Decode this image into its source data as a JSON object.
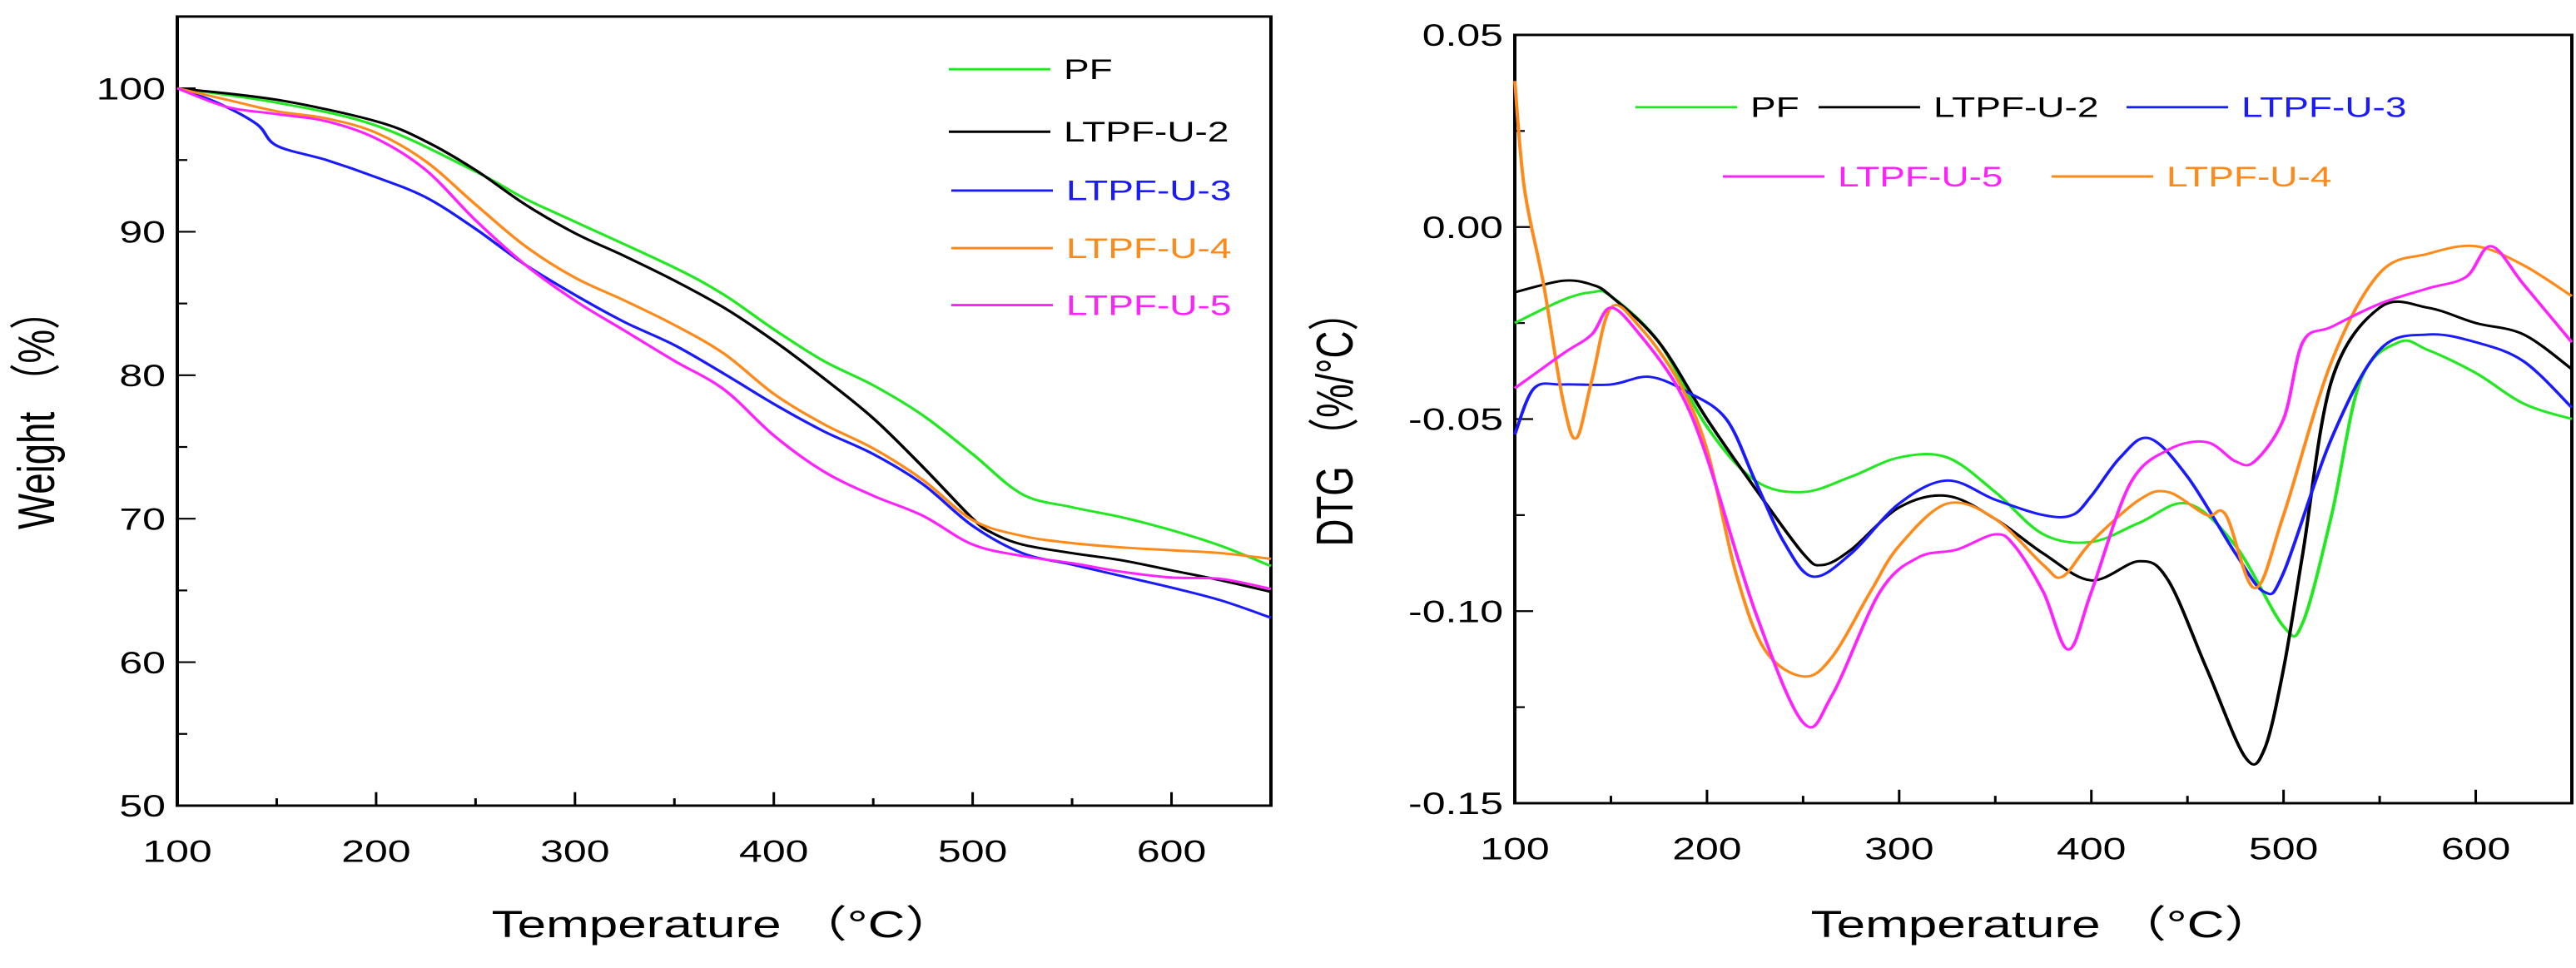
{
  "colors": {
    "PF": "#22e822",
    "LTPF-U-2": "#000000",
    "LTPF-U-3": "#1a1aff",
    "LTPF-U-4": "#ff8a1a",
    "LTPF-U-5": "#ff22ff"
  },
  "chart_data": [
    {
      "type": "line",
      "title": "",
      "xlabel": "Temperature （°C）",
      "ylabel": "Weight （%）",
      "xlim": [
        100,
        650
      ],
      "ylim": [
        50,
        105
      ],
      "xticks": [
        100,
        200,
        300,
        400,
        500,
        600
      ],
      "yticks": [
        50,
        60,
        70,
        80,
        90,
        100
      ],
      "xtick_labels": [
        "100",
        "200",
        "300",
        "400",
        "500",
        "600"
      ],
      "ytick_labels": [
        "50",
        "60",
        "70",
        "80",
        "90",
        "100"
      ],
      "grid": false,
      "legend_position": "top-right",
      "series": [
        {
          "name": "PF",
          "x": [
            100,
            150,
            200,
            250,
            275,
            300,
            350,
            375,
            400,
            425,
            450,
            475,
            500,
            525,
            550,
            575,
            600,
            625,
            650
          ],
          "y": [
            100,
            99.0,
            97.4,
            94.2,
            92.3,
            90.7,
            87.5,
            85.6,
            83.2,
            81.0,
            79.3,
            77.2,
            74.5,
            71.7,
            70.8,
            70.1,
            69.2,
            68.1,
            66.7
          ]
        },
        {
          "name": "LTPF-U-2",
          "x": [
            100,
            150,
            200,
            225,
            250,
            275,
            300,
            325,
            350,
            375,
            400,
            425,
            450,
            475,
            500,
            510,
            525,
            550,
            575,
            600,
            625,
            650
          ],
          "y": [
            100,
            99.2,
            97.7,
            96.3,
            94.3,
            91.9,
            89.9,
            88.3,
            86.6,
            84.7,
            82.4,
            79.8,
            77.0,
            73.6,
            70.0,
            69.0,
            68.2,
            67.6,
            67.1,
            66.4,
            65.7,
            64.9
          ]
        },
        {
          "name": "LTPF-U-3",
          "x": [
            100,
            120,
            140,
            150,
            175,
            200,
            225,
            250,
            275,
            300,
            325,
            350,
            375,
            400,
            425,
            450,
            475,
            500,
            525,
            550,
            575,
            600,
            625,
            650
          ],
          "y": [
            100,
            99.0,
            97.5,
            96.0,
            95.0,
            93.8,
            92.4,
            90.2,
            87.7,
            85.6,
            83.7,
            82.1,
            80.1,
            78.0,
            76.1,
            74.5,
            72.4,
            69.5,
            67.6,
            66.8,
            66.0,
            65.2,
            64.3,
            63.1
          ]
        },
        {
          "name": "LTPF-U-4",
          "x": [
            100,
            125,
            150,
            175,
            200,
            225,
            250,
            275,
            300,
            325,
            350,
            375,
            400,
            425,
            450,
            475,
            500,
            525,
            550,
            575,
            600,
            625,
            650
          ],
          "y": [
            100,
            99.2,
            98.4,
            97.9,
            96.9,
            94.9,
            91.9,
            89.0,
            86.8,
            85.2,
            83.5,
            81.5,
            78.7,
            76.6,
            74.9,
            72.7,
            69.9,
            68.8,
            68.3,
            68.0,
            67.8,
            67.6,
            67.2
          ]
        },
        {
          "name": "LTPF-U-5",
          "x": [
            100,
            125,
            150,
            175,
            200,
            225,
            250,
            275,
            300,
            325,
            350,
            375,
            400,
            425,
            450,
            475,
            500,
            525,
            550,
            575,
            600,
            625,
            650
          ],
          "y": [
            100,
            98.7,
            98.2,
            97.7,
            96.5,
            94.3,
            90.8,
            87.7,
            85.2,
            83.1,
            81.0,
            79.0,
            75.8,
            73.3,
            71.6,
            70.2,
            68.2,
            67.4,
            66.9,
            66.3,
            65.9,
            65.8,
            65.1
          ]
        }
      ]
    },
    {
      "type": "line",
      "title": "",
      "xlabel": "Temperature （°C）",
      "ylabel": "DTG （%/°C）",
      "xlim": [
        100,
        650
      ],
      "ylim": [
        -0.15,
        0.05
      ],
      "xticks": [
        100,
        200,
        300,
        400,
        500,
        600
      ],
      "yticks": [
        -0.15,
        -0.1,
        -0.05,
        0.0,
        0.05
      ],
      "xtick_labels": [
        "100",
        "200",
        "300",
        "400",
        "500",
        "600"
      ],
      "ytick_labels": [
        "-0.15",
        "-0.10",
        "-0.05",
        "0.00",
        "0.05"
      ],
      "grid": false,
      "legend_position": "top",
      "legend_order": [
        "PF",
        "LTPF-U-2",
        "LTPF-U-3",
        "LTPF-U-5",
        "LTPF-U-4"
      ],
      "series": [
        {
          "name": "PF",
          "x": [
            100,
            125,
            140,
            150,
            175,
            200,
            225,
            250,
            275,
            300,
            325,
            350,
            375,
            400,
            425,
            450,
            475,
            500,
            510,
            525,
            540,
            560,
            575,
            600,
            625,
            650
          ],
          "y": [
            -0.025,
            -0.019,
            -0.017,
            -0.018,
            -0.03,
            -0.052,
            -0.066,
            -0.069,
            -0.065,
            -0.06,
            -0.06,
            -0.069,
            -0.08,
            -0.082,
            -0.077,
            -0.072,
            -0.083,
            -0.104,
            -0.103,
            -0.075,
            -0.04,
            -0.03,
            -0.032,
            -0.038,
            -0.046,
            -0.05
          ]
        },
        {
          "name": "LTPF-U-2",
          "x": [
            100,
            125,
            140,
            150,
            175,
            200,
            225,
            250,
            260,
            275,
            300,
            325,
            350,
            375,
            400,
            425,
            440,
            460,
            480,
            490,
            500,
            510,
            525,
            550,
            575,
            600,
            625,
            650
          ],
          "y": [
            -0.017,
            -0.014,
            -0.015,
            -0.018,
            -0.03,
            -0.05,
            -0.068,
            -0.085,
            -0.088,
            -0.084,
            -0.073,
            -0.07,
            -0.076,
            -0.085,
            -0.092,
            -0.087,
            -0.092,
            -0.115,
            -0.138,
            -0.136,
            -0.115,
            -0.085,
            -0.04,
            -0.021,
            -0.021,
            -0.025,
            -0.028,
            -0.037
          ]
        },
        {
          "name": "LTPF-U-3",
          "x": [
            100,
            110,
            125,
            150,
            170,
            190,
            210,
            225,
            240,
            255,
            275,
            300,
            325,
            350,
            375,
            390,
            400,
            415,
            430,
            450,
            475,
            490,
            500,
            525,
            550,
            575,
            600,
            625,
            650
          ],
          "y": [
            -0.054,
            -0.042,
            -0.041,
            -0.041,
            -0.039,
            -0.043,
            -0.05,
            -0.066,
            -0.082,
            -0.091,
            -0.085,
            -0.072,
            -0.066,
            -0.071,
            -0.075,
            -0.075,
            -0.07,
            -0.06,
            -0.055,
            -0.065,
            -0.085,
            -0.095,
            -0.09,
            -0.055,
            -0.032,
            -0.028,
            -0.03,
            -0.035,
            -0.047
          ]
        },
        {
          "name": "LTPF-U-4",
          "x": [
            100,
            105,
            115,
            125,
            132,
            140,
            150,
            165,
            185,
            200,
            215,
            230,
            250,
            265,
            285,
            300,
            325,
            350,
            375,
            385,
            400,
            425,
            440,
            460,
            470,
            485,
            500,
            525,
            550,
            575,
            600,
            625,
            650
          ],
          "y": [
            0.038,
            0.01,
            -0.015,
            -0.045,
            -0.055,
            -0.04,
            -0.021,
            -0.026,
            -0.04,
            -0.058,
            -0.09,
            -0.11,
            -0.117,
            -0.112,
            -0.095,
            -0.083,
            -0.072,
            -0.076,
            -0.088,
            -0.091,
            -0.082,
            -0.071,
            -0.069,
            -0.075,
            -0.075,
            -0.094,
            -0.075,
            -0.035,
            -0.012,
            -0.007,
            -0.005,
            -0.01,
            -0.018
          ]
        },
        {
          "name": "LTPF-U-5",
          "x": [
            100,
            125,
            140,
            150,
            165,
            185,
            200,
            225,
            250,
            265,
            290,
            310,
            330,
            350,
            360,
            375,
            388,
            400,
            420,
            440,
            460,
            475,
            485,
            500,
            510,
            525,
            550,
            575,
            595,
            608,
            625,
            650
          ],
          "y": [
            -0.042,
            -0.033,
            -0.028,
            -0.021,
            -0.028,
            -0.042,
            -0.06,
            -0.1,
            -0.129,
            -0.122,
            -0.095,
            -0.086,
            -0.084,
            -0.08,
            -0.083,
            -0.095,
            -0.11,
            -0.095,
            -0.067,
            -0.058,
            -0.056,
            -0.061,
            -0.061,
            -0.05,
            -0.03,
            -0.026,
            -0.02,
            -0.016,
            -0.013,
            -0.005,
            -0.015,
            -0.03
          ]
        }
      ]
    }
  ]
}
